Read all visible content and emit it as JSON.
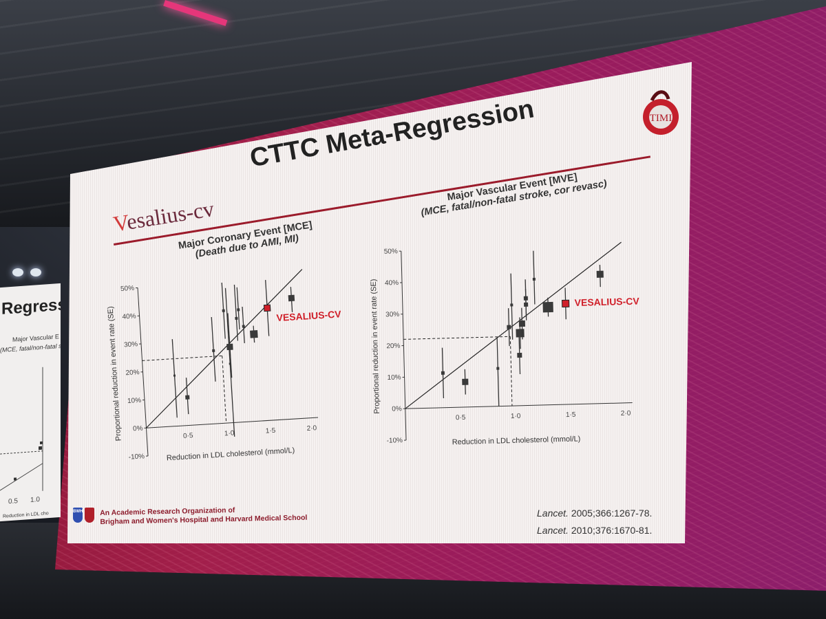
{
  "slide": {
    "title": "CTTC Meta-Regression",
    "logo_text": "esalius-cv",
    "logo_letter": "V",
    "timi_text": "TIMI",
    "footer_org_line1": "An Academic Research Organization of",
    "footer_org_line2": "Brigham and Women's Hospital and Harvard Medical School",
    "ref1_journal": "Lancet.",
    "ref1_rest": " 2005;366:1267-78.",
    "ref2_journal": "Lancet.",
    "ref2_rest": " 2010;376:1670-81.",
    "bwh_badge": "BWH"
  },
  "left_slide": {
    "title": "Regression",
    "sub1": "Major Vascular E",
    "sub2": "(MCE, fatal/non-fatal st",
    "xticks": [
      "0.5",
      "1.0"
    ],
    "xlabel": "Reduction in LDL cho"
  },
  "colors": {
    "highlight": "#d0202a",
    "marker": "#3a3a3a",
    "accent": "#9b1b2b"
  },
  "chart_data": [
    {
      "type": "scatter",
      "title": "Major Coronary Event [MCE]",
      "subtitle": "(Death due to AMI, MI)",
      "xlabel": "Reduction in LDL cholesterol (mmol/L)",
      "ylabel": "Proportional reduction in event rate (SE)",
      "xlim": [
        0,
        2.0
      ],
      "ylim": [
        -10,
        50
      ],
      "xticks": [
        "0·5",
        "1·0",
        "1·5",
        "2·0"
      ],
      "yticks": [
        "-10%",
        "0%",
        "10%",
        "20%",
        "30%",
        "40%",
        "50%"
      ],
      "regression_line": [
        [
          0,
          0
        ],
        [
          2.0,
          53
        ]
      ],
      "reference": {
        "x": 0.97,
        "y": 24
      },
      "highlight_label": "VESALIUS-CV",
      "points": [
        {
          "x": 0.38,
          "y": 18,
          "lo": 3,
          "hi": 31,
          "size": 3
        },
        {
          "x": 0.52,
          "y": 10,
          "lo": 4,
          "hi": 17,
          "size": 6
        },
        {
          "x": 0.87,
          "y": 26,
          "lo": 15,
          "hi": 38,
          "size": 4
        },
        {
          "x": 1.02,
          "y": 40,
          "lo": 30,
          "hi": 50,
          "size": 4
        },
        {
          "x": 1.06,
          "y": 21,
          "lo": -5,
          "hi": 48,
          "size": 3
        },
        {
          "x": 1.07,
          "y": 27,
          "lo": 16,
          "hi": 39,
          "size": 9
        },
        {
          "x": 1.17,
          "y": 37,
          "lo": 29,
          "hi": 49,
          "size": 4
        },
        {
          "x": 1.2,
          "y": 40,
          "lo": 33,
          "hi": 48,
          "size": 4
        },
        {
          "x": 1.25,
          "y": 34,
          "lo": 28,
          "hi": 41,
          "size": 4
        },
        {
          "x": 1.37,
          "y": 31,
          "lo": 28,
          "hi": 34,
          "size": 11
        },
        {
          "x": 1.55,
          "y": 40,
          "lo": 30,
          "hi": 50,
          "size": 9,
          "highlight": true
        },
        {
          "x": 1.85,
          "y": 43,
          "lo": 38,
          "hi": 47,
          "size": 9
        }
      ]
    },
    {
      "type": "scatter",
      "title": "Major Vascular Event [MVE]",
      "subtitle": "(MCE, fatal/non-fatal stroke, cor revasc)",
      "xlabel": "Reduction in LDL cholesterol (mmol/L)",
      "ylabel": "Proportional reduction in event rate (SE)",
      "xlim": [
        0,
        2.0
      ],
      "ylim": [
        -10,
        50
      ],
      "xticks": [
        "0·5",
        "1·0",
        "1·5",
        "2·0"
      ],
      "yticks": [
        "-10%",
        "0%",
        "10%",
        "20%",
        "30%",
        "40%",
        "50%"
      ],
      "regression_line": [
        [
          0,
          0
        ],
        [
          2.0,
          51
        ]
      ],
      "reference": {
        "x": 0.97,
        "y": 22
      },
      "highlight_label": "VESALIUS-CV",
      "points": [
        {
          "x": 0.35,
          "y": 11,
          "lo": 3,
          "hi": 19,
          "size": 5
        },
        {
          "x": 0.55,
          "y": 8,
          "lo": 4,
          "hi": 12,
          "size": 9
        },
        {
          "x": 0.85,
          "y": 12,
          "lo": 0,
          "hi": 22,
          "size": 4
        },
        {
          "x": 0.96,
          "y": 25,
          "lo": 19,
          "hi": 31,
          "size": 6
        },
        {
          "x": 0.99,
          "y": 32,
          "lo": 21,
          "hi": 42,
          "size": 4
        },
        {
          "x": 1.05,
          "y": 16,
          "lo": 10,
          "hi": 22,
          "size": 7
        },
        {
          "x": 1.06,
          "y": 23,
          "lo": 18,
          "hi": 28,
          "size": 12
        },
        {
          "x": 1.08,
          "y": 26,
          "lo": 21,
          "hi": 31,
          "size": 9
        },
        {
          "x": 1.12,
          "y": 34,
          "lo": 28,
          "hi": 40,
          "size": 6
        },
        {
          "x": 1.12,
          "y": 32,
          "lo": 27,
          "hi": 37,
          "size": 6
        },
        {
          "x": 1.2,
          "y": 40,
          "lo": 32,
          "hi": 49,
          "size": 4
        },
        {
          "x": 1.32,
          "y": 31,
          "lo": 28,
          "hi": 34,
          "size": 15
        },
        {
          "x": 1.48,
          "y": 32,
          "lo": 27,
          "hi": 37,
          "size": 10,
          "highlight": true
        },
        {
          "x": 1.8,
          "y": 41,
          "lo": 37,
          "hi": 44,
          "size": 10
        }
      ]
    }
  ]
}
